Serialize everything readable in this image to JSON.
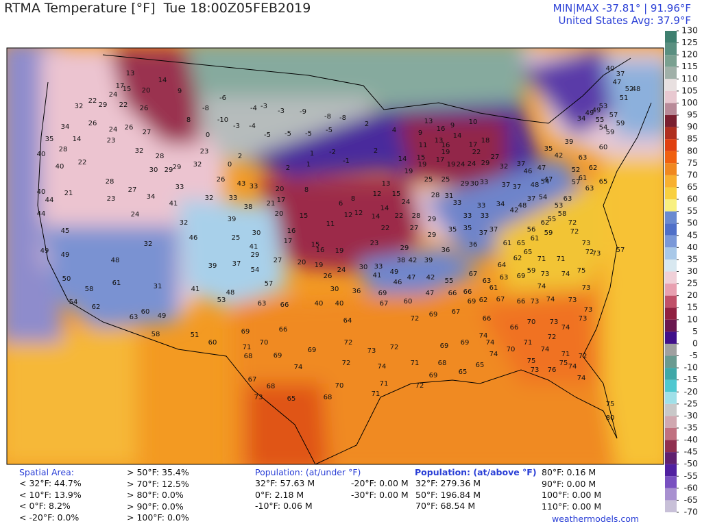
{
  "header": {
    "title": "RTMA Temperature [°F]  Tue 18:00Z05FEB2019",
    "minmax": "MIN|MAX -37.81° | 91.96°F",
    "average": "United States Avg: 37.9°F"
  },
  "colorbar": {
    "ylim": [
      -70,
      130
    ],
    "ticks": [
      130,
      125,
      120,
      115,
      110,
      105,
      100,
      95,
      90,
      85,
      80,
      75,
      70,
      65,
      60,
      55,
      50,
      45,
      40,
      35,
      30,
      25,
      20,
      15,
      10,
      5,
      0,
      -5,
      -10,
      -15,
      -20,
      -25,
      -30,
      -35,
      -40,
      -45,
      -50,
      -55,
      -60,
      -65,
      -70
    ],
    "colors": [
      "#3f7f6f",
      "#5a8f80",
      "#7aa090",
      "#a0b0a8",
      "#e8e0e0",
      "#e8c8d0",
      "#b88a98",
      "#7a2030",
      "#b03020",
      "#e04010",
      "#f06010",
      "#f08820",
      "#f8b030",
      "#f8d040",
      "#f8f080",
      "#6a8ad0",
      "#5070c8",
      "#7a98d8",
      "#a8c8e8",
      "#d8e8f0",
      "#f0d0d8",
      "#e8a0b0",
      "#c05068",
      "#902040",
      "#6a1850",
      "#40108a",
      "#a0a0a0",
      "#6a9a90",
      "#40a8a8",
      "#50c8d0",
      "#a0e0e8",
      "#c8c8c8",
      "#d0a8b0",
      "#c07080",
      "#903050",
      "#602070",
      "#5020a0",
      "#7850c0",
      "#a890d0",
      "#c8c0d8"
    ]
  },
  "stations": [
    13,
    17,
    15,
    20,
    14,
    9,
    24,
    22,
    26,
    29,
    22,
    32,
    34,
    35,
    14,
    26,
    24,
    26,
    27,
    23,
    28,
    22,
    40,
    40,
    32,
    28,
    29,
    30,
    29,
    32,
    23,
    28,
    27,
    21,
    40,
    44,
    44,
    23,
    34,
    41,
    33,
    32,
    33,
    43,
    33,
    24,
    32,
    46,
    32,
    45,
    49,
    49,
    48,
    39,
    38,
    30,
    41,
    25,
    29,
    27,
    39,
    37,
    54,
    57,
    50,
    58,
    61,
    31,
    41,
    48,
    53,
    54,
    62,
    63,
    60,
    49,
    63,
    66,
    58,
    51,
    60,
    69,
    70,
    71,
    68,
    69,
    69,
    66,
    74,
    72,
    72,
    73,
    70,
    68,
    67,
    68,
    73,
    65,
    71,
    74,
    72,
    71,
    -6,
    -8,
    -10,
    8,
    0,
    -4,
    -3,
    -3,
    -4,
    -5,
    -3,
    -5,
    -9,
    -8,
    -8,
    -5,
    -5,
    1,
    -2,
    1,
    -1,
    2,
    2,
    4,
    2,
    0,
    2,
    26,
    20,
    8,
    21,
    17,
    20,
    15,
    11,
    6,
    8,
    12,
    14,
    13,
    12,
    15,
    14,
    22,
    22,
    14,
    15,
    11,
    9,
    13,
    13,
    16,
    16,
    9,
    14,
    10,
    18,
    17,
    22,
    24,
    24,
    19,
    17,
    19,
    19,
    19,
    25,
    25,
    29,
    30,
    33,
    29,
    32,
    27,
    12,
    24,
    28,
    27,
    29,
    29,
    28,
    16,
    15,
    19,
    16,
    17,
    20,
    19,
    24,
    26,
    30,
    33,
    23,
    29,
    38,
    42,
    39,
    46,
    41,
    49,
    47,
    42,
    36,
    31,
    33,
    33,
    35,
    35,
    36,
    37,
    33,
    37,
    33,
    34,
    37,
    42,
    48,
    37,
    48,
    54,
    54,
    47,
    30,
    36,
    40,
    40,
    64,
    69,
    67,
    60,
    47,
    55,
    67,
    63,
    66,
    66,
    69,
    62,
    67,
    72,
    69,
    67,
    66,
    66,
    70,
    73,
    72,
    71,
    70,
    74,
    74,
    69,
    69,
    68,
    69,
    65,
    74,
    75,
    74,
    71,
    76,
    75,
    74,
    74,
    72,
    75,
    80,
    64,
    62,
    65,
    59,
    71,
    71,
    73,
    72,
    72,
    75,
    74,
    73,
    69,
    63,
    61,
    74,
    74,
    73,
    73,
    73,
    66,
    63,
    62,
    65,
    63,
    63,
    53,
    55,
    62,
    56,
    59,
    72,
    58,
    61,
    65,
    61,
    60,
    59,
    54,
    55,
    49,
    49,
    34,
    39,
    35,
    42,
    37,
    46,
    47,
    37,
    52,
    57,
    61,
    40,
    37,
    47,
    52,
    48,
    51,
    53,
    57,
    59,
    57,
    73,
    73,
    74,
    73,
    65,
    72,
    71,
    73
  ],
  "footer": {
    "spatial_title": "Spatial Area:",
    "spatial_below": [
      "< 32°F: 44.7%",
      "< 10°F: 13.9%",
      "< 0°F: 8.2%",
      "< -20°F: 0.0%"
    ],
    "spatial_above": [
      "> 50°F: 35.4%",
      "> 70°F: 12.5%",
      "> 80°F: 0.0%",
      "> 90°F: 0.0%",
      "> 100°F: 0.0%"
    ],
    "population_under_title": "Population: (at/under °F)",
    "population_under": [
      "32°F: 57.63 M",
      "0°F: 2.18 M",
      "-10°F: 0.06 M"
    ],
    "population_under_2": [
      "-20°F: 0.00 M",
      "-30°F: 0.00 M"
    ],
    "population_above_title": "Population: (at/above °F)",
    "population_above": [
      "32°F: 279.36 M",
      "50°F: 196.84 M",
      "70°F: 68.54 M"
    ],
    "population_above_2": [
      "80°F: 0.16 M",
      "90°F: 0.00 M",
      "100°F: 0.00 M",
      "110°F: 0.00 M"
    ],
    "credit": "weathermodels.com"
  }
}
